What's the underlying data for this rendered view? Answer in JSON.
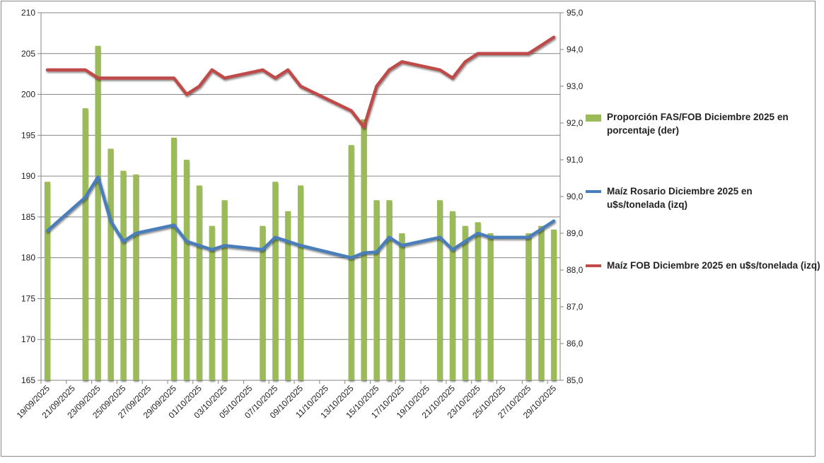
{
  "chart_data": {
    "type": "bar+line",
    "dates": [
      "19/09/2025",
      "20/09/2025",
      "21/09/2025",
      "22/09/2025",
      "23/09/2025",
      "24/09/2025",
      "25/09/2025",
      "26/09/2025",
      "27/09/2025",
      "28/09/2025",
      "29/09/2025",
      "30/09/2025",
      "01/10/2025",
      "02/10/2025",
      "03/10/2025",
      "04/10/2025",
      "05/10/2025",
      "06/10/2025",
      "07/10/2025",
      "08/10/2025",
      "09/10/2025",
      "10/10/2025",
      "11/10/2025",
      "12/10/2025",
      "13/10/2025",
      "14/10/2025",
      "15/10/2025",
      "16/10/2025",
      "17/10/2025",
      "18/10/2025",
      "19/10/2025",
      "20/10/2025",
      "21/10/2025",
      "22/10/2025",
      "23/10/2025",
      "24/10/2025",
      "25/10/2025",
      "26/10/2025",
      "27/10/2025",
      "28/10/2025",
      "29/10/2025"
    ],
    "tick_labels": [
      "19/09/2025",
      "21/09/2025",
      "23/09/2025",
      "25/09/2025",
      "27/09/2025",
      "29/09/2025",
      "01/10/2025",
      "03/10/2025",
      "05/10/2025",
      "07/10/2025",
      "09/10/2025",
      "11/10/2025",
      "13/10/2025",
      "15/10/2025",
      "17/10/2025",
      "19/10/2025",
      "21/10/2025",
      "23/10/2025",
      "25/10/2025",
      "27/10/2025",
      "29/10/2025"
    ],
    "left_axis": {
      "min": 165,
      "max": 210,
      "step": 5,
      "ticks": [
        "165",
        "170",
        "175",
        "180",
        "185",
        "190",
        "195",
        "200",
        "205",
        "210"
      ]
    },
    "right_axis": {
      "min": 85,
      "max": 95,
      "step": 1,
      "ticks": [
        "85,0",
        "86,0",
        "87,0",
        "88,0",
        "89,0",
        "90,0",
        "91,0",
        "92,0",
        "93,0",
        "94,0",
        "95,0"
      ]
    },
    "grid": true,
    "legend_position": "right",
    "series": [
      {
        "name": "Proporción FAS/FOB Diciembre 2025 en porcentaje (der)",
        "type": "bar",
        "axis": "right",
        "color": "#9bbb59",
        "values": [
          90.4,
          null,
          null,
          92.4,
          94.1,
          91.3,
          90.7,
          90.6,
          null,
          null,
          91.6,
          91.0,
          90.3,
          89.2,
          89.9,
          null,
          null,
          89.2,
          90.4,
          89.6,
          90.3,
          null,
          null,
          null,
          91.4,
          92.1,
          89.9,
          89.9,
          89.0,
          null,
          null,
          89.9,
          89.6,
          89.2,
          89.3,
          89.0,
          null,
          null,
          89.0,
          89.2,
          89.1
        ]
      },
      {
        "name": "Maíz Rosario Diciembre 2025 en u$s/tonelada (izq)",
        "type": "line",
        "axis": "left",
        "color": "#4a7ebb",
        "values": [
          183.3,
          null,
          null,
          187.4,
          189.9,
          184.5,
          182.0,
          183.0,
          null,
          null,
          184.0,
          182.0,
          181.5,
          181.0,
          181.5,
          null,
          null,
          181.0,
          182.5,
          182.0,
          181.5,
          null,
          null,
          null,
          180.0,
          180.6,
          180.7,
          182.5,
          181.5,
          null,
          null,
          182.5,
          181.0,
          182.0,
          183.0,
          182.5,
          null,
          null,
          182.5,
          183.5,
          184.5
        ]
      },
      {
        "name": "Maíz FOB Diciembre 2025 en u$s/tonelada (izq)",
        "type": "line",
        "axis": "left",
        "color": "#be4b48",
        "values": [
          203,
          null,
          null,
          203,
          202,
          202,
          202,
          202,
          null,
          null,
          202,
          200,
          201,
          203,
          202,
          null,
          null,
          203,
          202,
          203,
          201,
          null,
          null,
          null,
          198,
          196,
          201,
          203,
          204,
          null,
          null,
          203,
          202,
          204,
          205,
          205,
          null,
          null,
          205,
          206,
          207
        ]
      }
    ]
  }
}
